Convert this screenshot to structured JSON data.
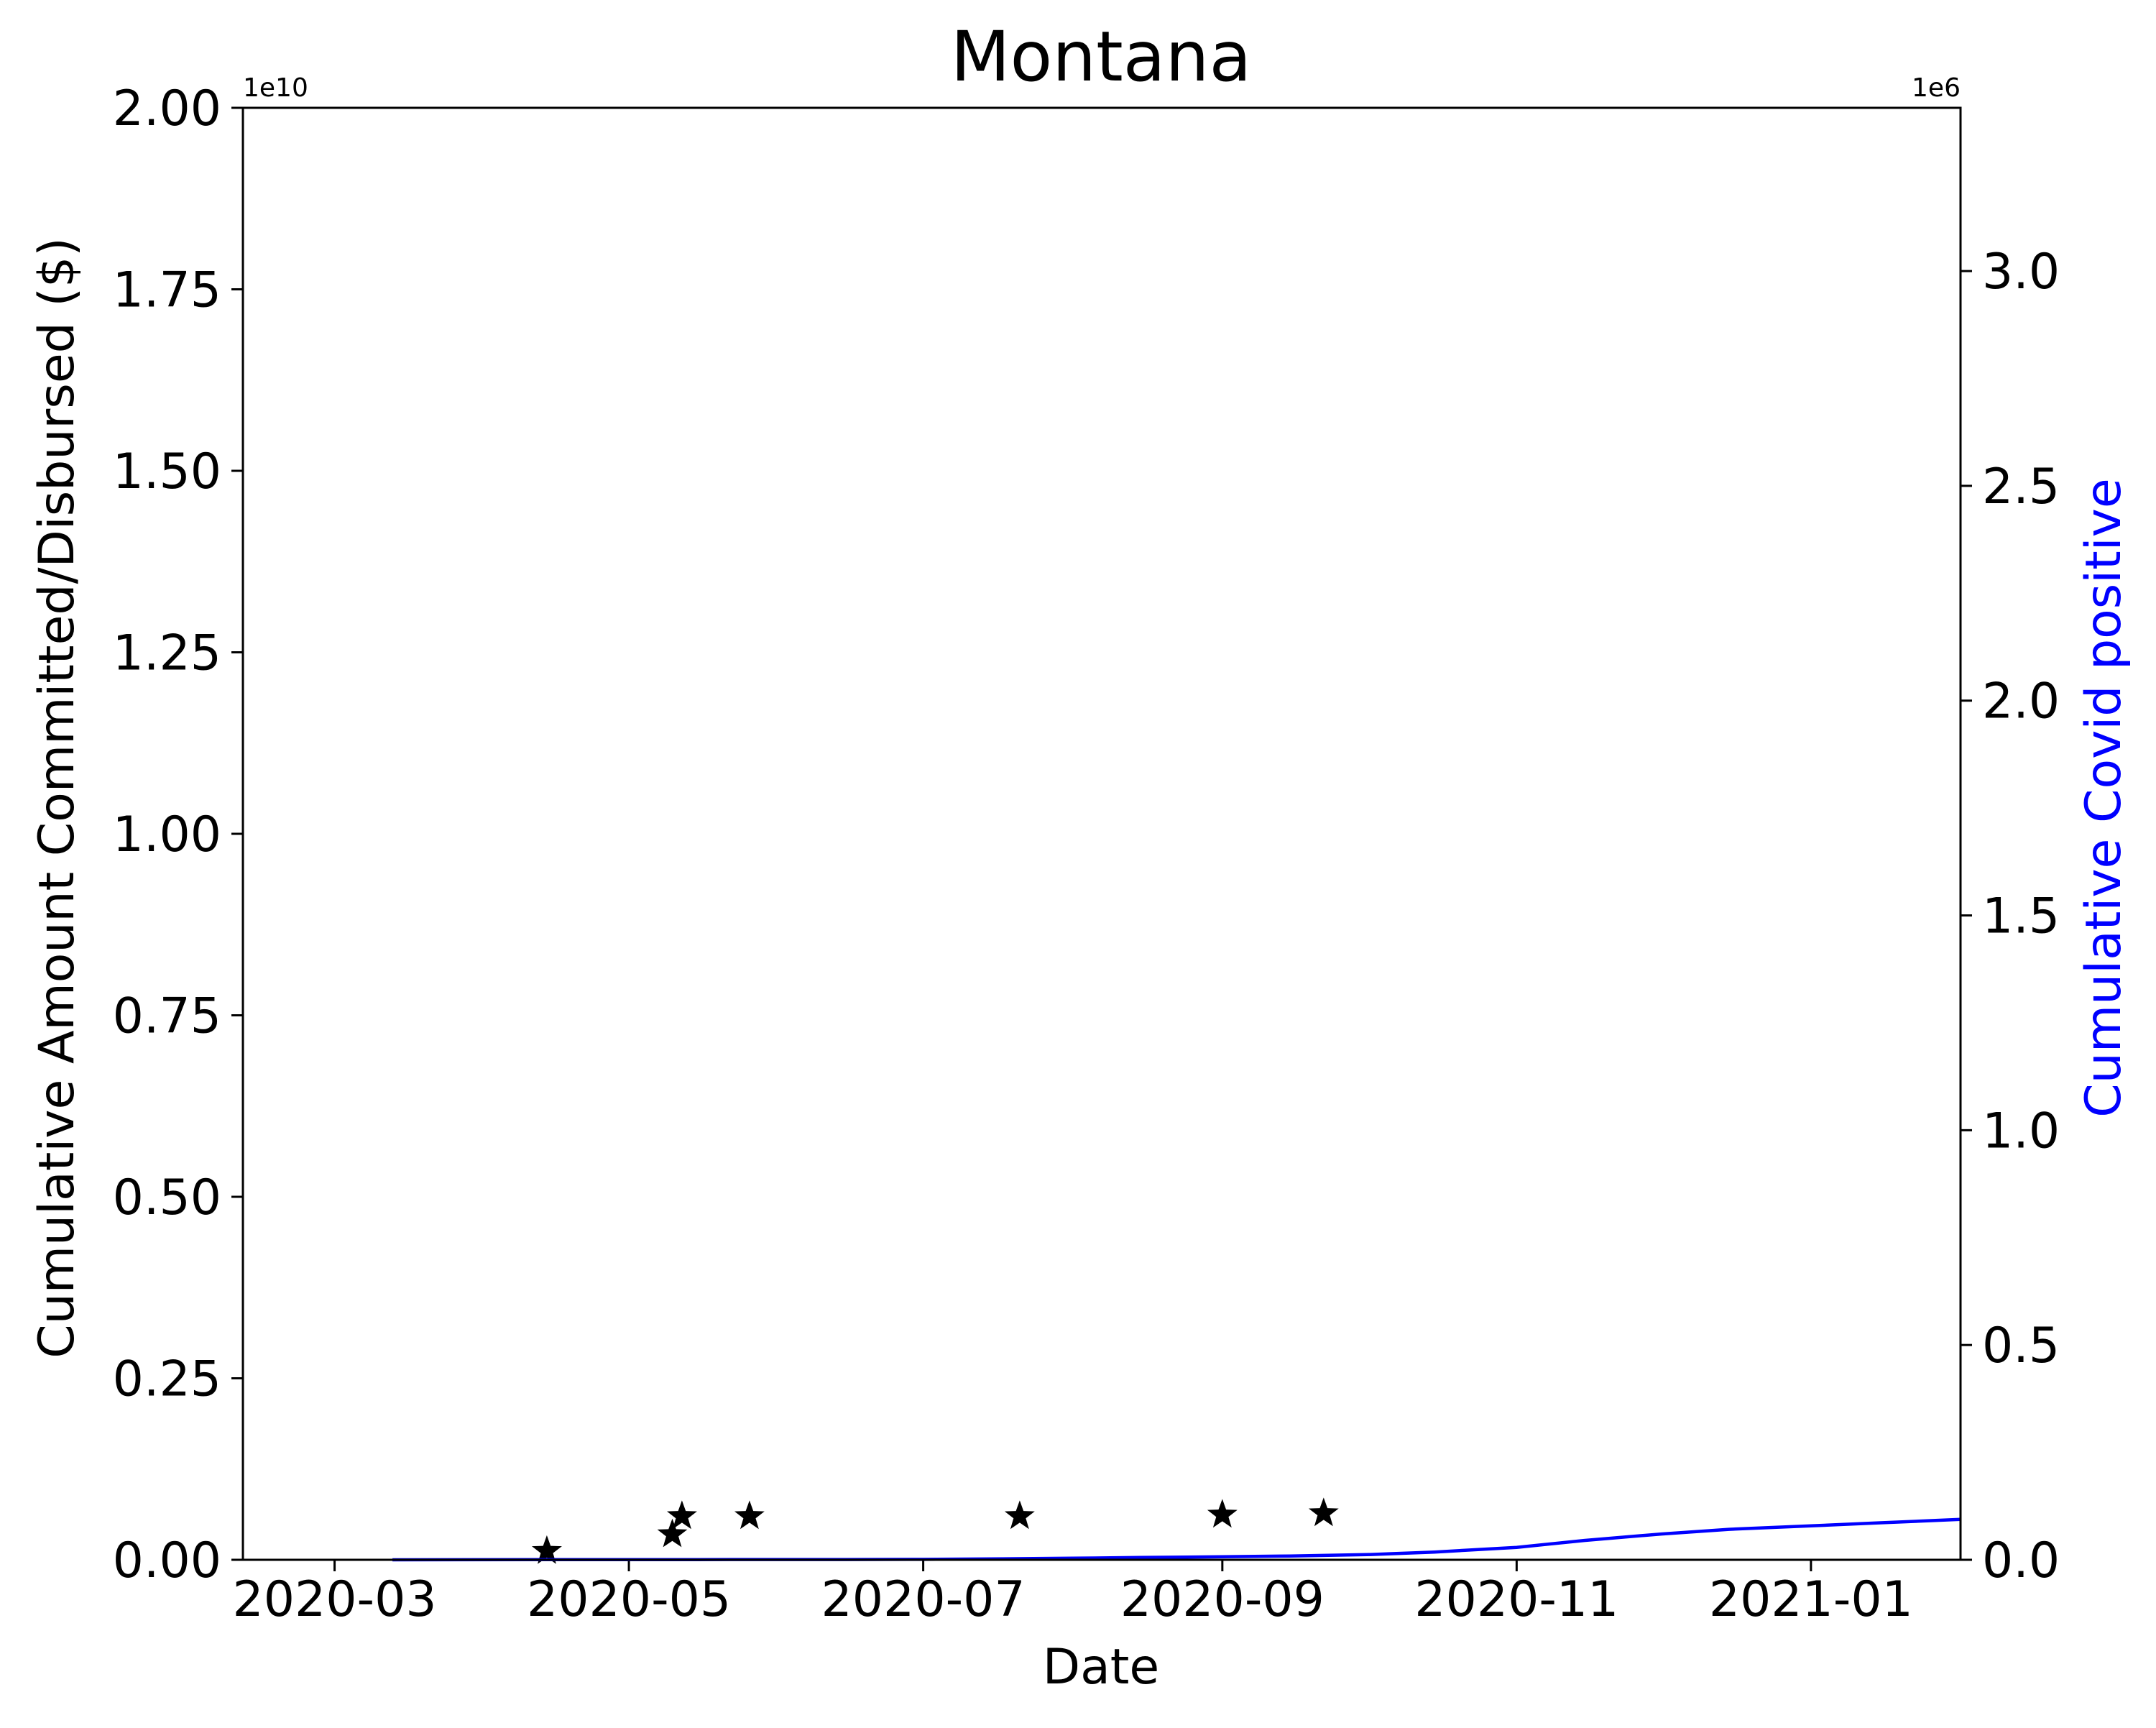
{
  "chart_data": {
    "type": "line",
    "title": "Montana",
    "xlabel": "Date",
    "ylabel": "Cumulative Amount Committed/Disbursed ($)",
    "y2label": "Cumulative Covid positive",
    "y_offset_label": "1e10",
    "y2_offset_label": "1e6",
    "x_range": [
      "2020-02-11",
      "2021-02-01"
    ],
    "ylim": [
      0,
      20000000000.0
    ],
    "y2lim": [
      0,
      3380000.0
    ],
    "x_ticks": [
      "2020-03",
      "2020-05",
      "2020-07",
      "2020-09",
      "2020-11",
      "2021-01"
    ],
    "y_ticks": [
      "0.00",
      "0.25",
      "0.50",
      "0.75",
      "1.00",
      "1.25",
      "1.50",
      "1.75",
      "2.00"
    ],
    "y2_ticks": [
      "0.0",
      "0.5",
      "1.0",
      "1.5",
      "2.0",
      "2.5",
      "3.0"
    ],
    "colors": {
      "covid_line": "#0000ff",
      "markers": "#000000",
      "y2_label": "#0000ff"
    },
    "series": [
      {
        "axis": "left",
        "type": "scatter",
        "marker": "star",
        "points": [
          {
            "x": "2020-04-14",
            "y": 120000000.0
          },
          {
            "x": "2020-05-10",
            "y": 350000000.0
          },
          {
            "x": "2020-05-12",
            "y": 600000000.0
          },
          {
            "x": "2020-05-26",
            "y": 600000000.0
          },
          {
            "x": "2020-07-21",
            "y": 600000000.0
          },
          {
            "x": "2020-09-01",
            "y": 620000000.0
          },
          {
            "x": "2020-09-22",
            "y": 640000000.0
          }
        ]
      },
      {
        "axis": "right",
        "type": "line",
        "points": [
          {
            "x": "2020-03-13",
            "y": 0
          },
          {
            "x": "2020-04-15",
            "y": 400
          },
          {
            "x": "2020-05-15",
            "y": 500
          },
          {
            "x": "2020-06-15",
            "y": 700
          },
          {
            "x": "2020-07-01",
            "y": 1000
          },
          {
            "x": "2020-07-15",
            "y": 2000
          },
          {
            "x": "2020-08-01",
            "y": 3700
          },
          {
            "x": "2020-08-15",
            "y": 5400
          },
          {
            "x": "2020-09-01",
            "y": 7000
          },
          {
            "x": "2020-09-15",
            "y": 8800
          },
          {
            "x": "2020-10-01",
            "y": 12000
          },
          {
            "x": "2020-10-15",
            "y": 18000
          },
          {
            "x": "2020-11-01",
            "y": 29000
          },
          {
            "x": "2020-11-15",
            "y": 45000
          },
          {
            "x": "2020-12-01",
            "y": 60000
          },
          {
            "x": "2020-12-15",
            "y": 71000
          },
          {
            "x": "2021-01-01",
            "y": 79000
          },
          {
            "x": "2021-01-15",
            "y": 86000
          },
          {
            "x": "2021-02-01",
            "y": 94000
          }
        ]
      }
    ]
  }
}
